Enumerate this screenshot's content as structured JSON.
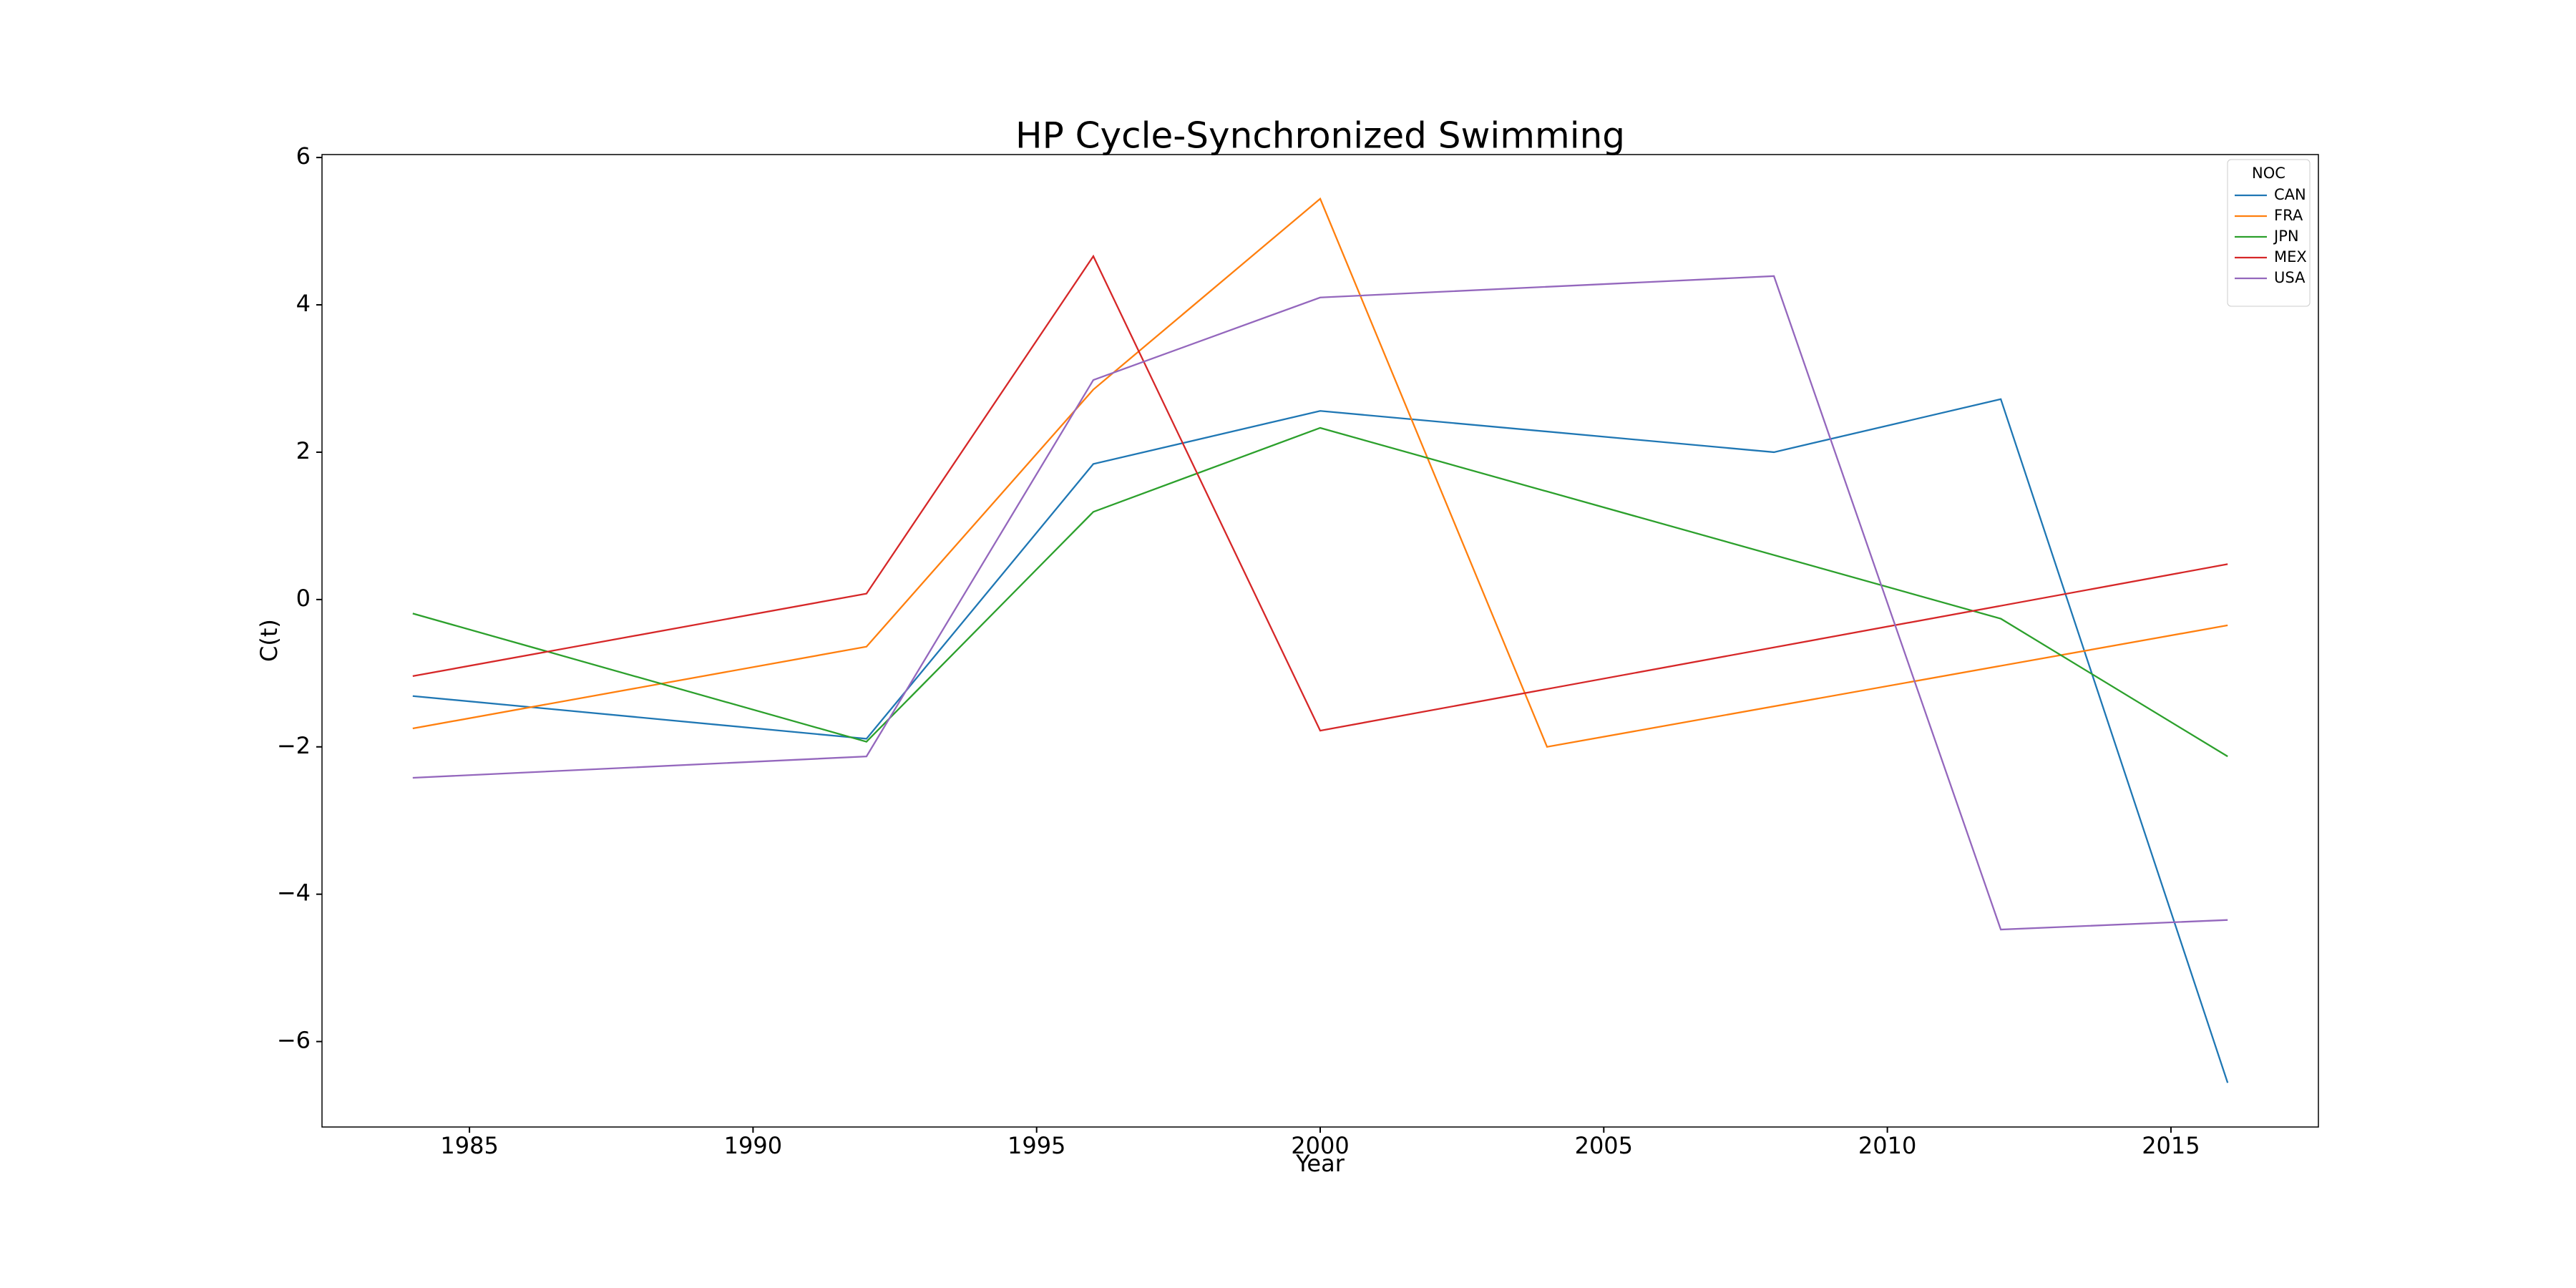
{
  "chart_data": {
    "type": "line",
    "title": "HP Cycle-Synchronized Swimming",
    "x_label": "Year",
    "y_label": "C(t)",
    "xlim": [
      1982.4,
      2017.6
    ],
    "ylim": [
      -7.16,
      6.04
    ],
    "xticks": [
      1985,
      1990,
      1995,
      2000,
      2005,
      2010,
      2015
    ],
    "yticks": [
      {
        "value": -6,
        "label": "−6"
      },
      {
        "value": -4,
        "label": "−4"
      },
      {
        "value": -2,
        "label": "−2"
      },
      0,
      2,
      4,
      6
    ],
    "grid": false,
    "legend_title": "NOC",
    "legend_loc": "upper right",
    "series": [
      {
        "name": "CAN",
        "color": "#1f77b4",
        "x": [
          1984,
          1992,
          1996,
          2000,
          2008,
          2012,
          2016
        ],
        "values": [
          -1.31,
          -1.89,
          1.84,
          2.56,
          2.0,
          2.72,
          -6.56
        ]
      },
      {
        "name": "FRA",
        "color": "#ff7f0e",
        "x": [
          1984,
          1992,
          1996,
          2000,
          2004,
          2016
        ],
        "values": [
          -1.75,
          -0.64,
          2.85,
          5.44,
          -2.0,
          -0.35
        ]
      },
      {
        "name": "JPN",
        "color": "#2ca02c",
        "x": [
          1984,
          1992,
          1996,
          2000,
          2012,
          2016
        ],
        "values": [
          -0.19,
          -1.93,
          1.19,
          2.33,
          -0.26,
          -2.13
        ]
      },
      {
        "name": "MEX",
        "color": "#d62728",
        "x": [
          1984,
          1992,
          1996,
          2000,
          2016
        ],
        "values": [
          -1.04,
          0.08,
          4.66,
          -1.78,
          0.48
        ]
      },
      {
        "name": "USA",
        "color": "#9467bd",
        "x": [
          1984,
          1992,
          1996,
          2000,
          2008,
          2012,
          2016
        ],
        "values": [
          -2.42,
          -2.13,
          2.98,
          4.1,
          4.39,
          -4.48,
          -4.35
        ]
      }
    ]
  }
}
